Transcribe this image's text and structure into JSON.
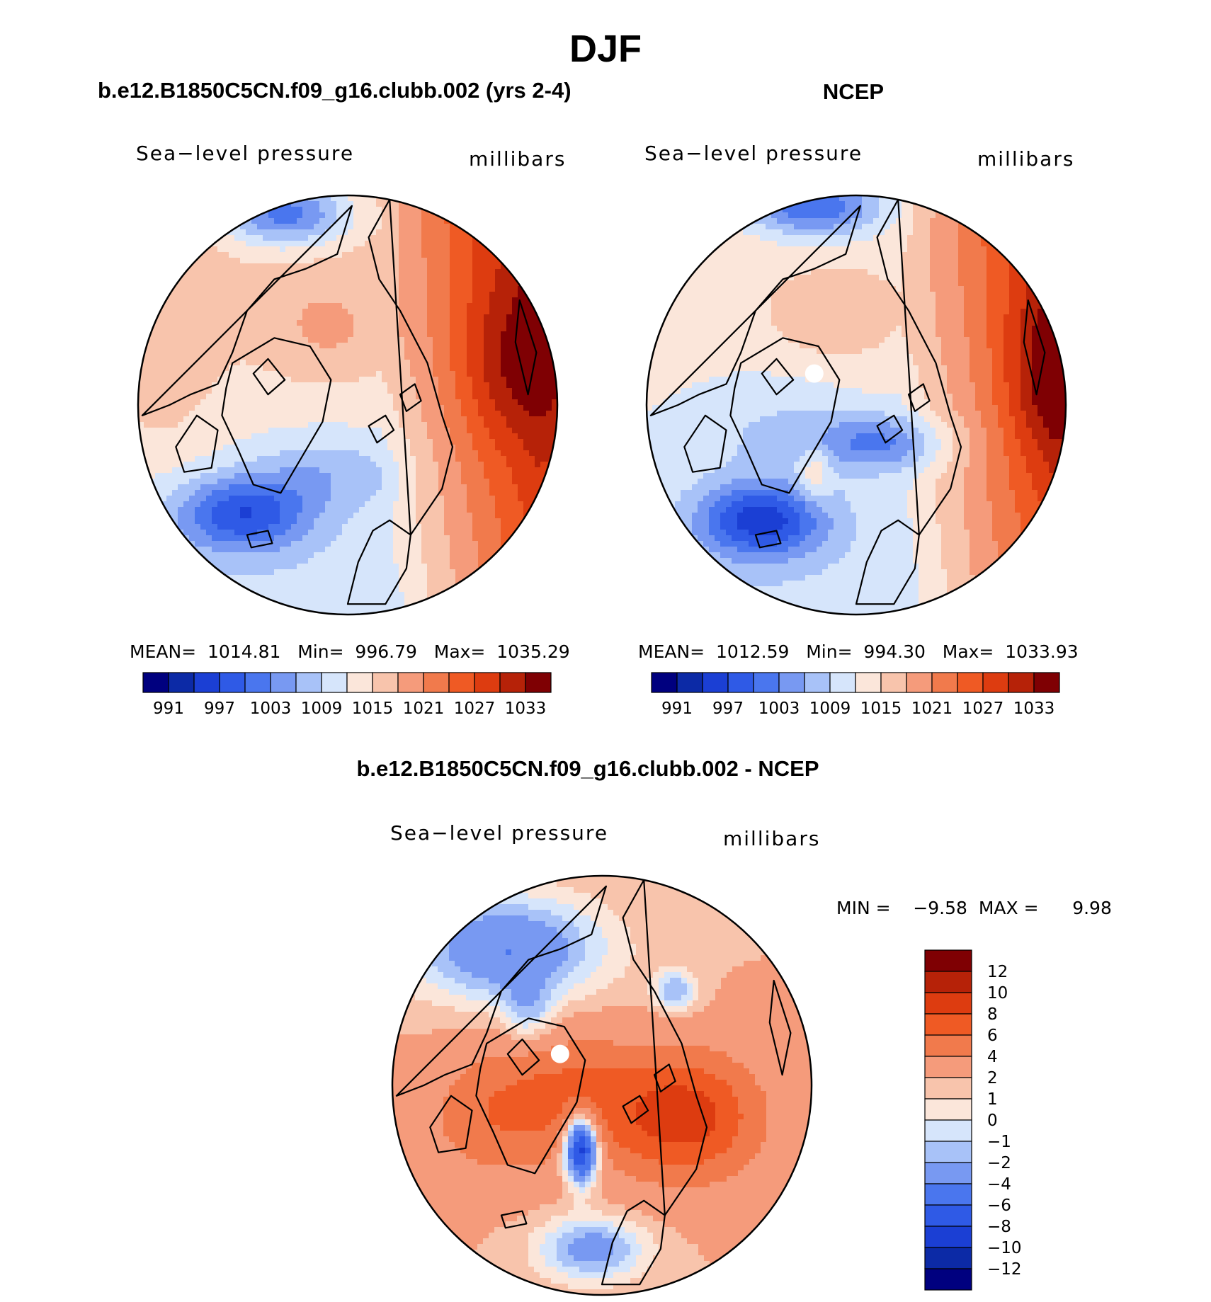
{
  "figure": {
    "title": "DJF",
    "variable_label": "Sea−level pressure",
    "unit_label": "millibars"
  },
  "colors": {
    "palette": [
      "#00007f",
      "#0c2aa6",
      "#1b3fd4",
      "#2f5ae6",
      "#4a76ee",
      "#7899f2",
      "#a8c2f8",
      "#d6e5fb",
      "#fbe6da",
      "#f8c4ac",
      "#f59b7b",
      "#f17a4c",
      "#ef5a24",
      "#dd3c10",
      "#b62208",
      "#7f0003"
    ],
    "continent": "#000000"
  },
  "chart_data": [
    {
      "id": "model",
      "type": "heatmap",
      "projection": "north-polar-stereographic",
      "title": "b.e12.B1850C5CN.f09_g16.clubb.002 (yrs 2-4)",
      "stats_text": "MEAN=  1014.81   Min=  996.79   Max=  1035.29",
      "stats": {
        "mean": 1014.81,
        "min": 996.79,
        "max": 1035.29
      },
      "levels": [
        991,
        994,
        997,
        1000,
        1003,
        1006,
        1009,
        1012,
        1015,
        1018,
        1021,
        1024,
        1027,
        1030,
        1033
      ],
      "tick_labels": [
        "991",
        "997",
        "1003",
        "1009",
        "1015",
        "1021",
        "1027",
        "1033"
      ]
    },
    {
      "id": "obs",
      "type": "heatmap",
      "projection": "north-polar-stereographic",
      "title": "NCEP",
      "stats_text": "MEAN=  1012.59   Min=  994.30   Max=  1033.93",
      "stats": {
        "mean": 1012.59,
        "min": 994.3,
        "max": 1033.93
      },
      "levels": [
        991,
        994,
        997,
        1000,
        1003,
        1006,
        1009,
        1012,
        1015,
        1018,
        1021,
        1024,
        1027,
        1030,
        1033
      ],
      "tick_labels": [
        "991",
        "997",
        "1003",
        "1009",
        "1015",
        "1021",
        "1027",
        "1033"
      ]
    },
    {
      "id": "diff",
      "type": "heatmap",
      "projection": "north-polar-stereographic",
      "title": "b.e12.B1850C5CN.f09_g16.clubb.002 - NCEP",
      "stats_text": "MIN =    −9.58  MAX =      9.98",
      "stats": {
        "min": -9.58,
        "max": 9.98
      },
      "levels": [
        -12,
        -10,
        -8,
        -6,
        -4,
        -2,
        -1,
        0,
        1,
        2,
        4,
        6,
        8,
        10,
        12
      ],
      "tick_labels": [
        "12",
        "10",
        "8",
        "6",
        "4",
        "2",
        "1",
        "0",
        "−1",
        "−2",
        "−4",
        "−6",
        "−8",
        "−10",
        "−12"
      ]
    }
  ]
}
